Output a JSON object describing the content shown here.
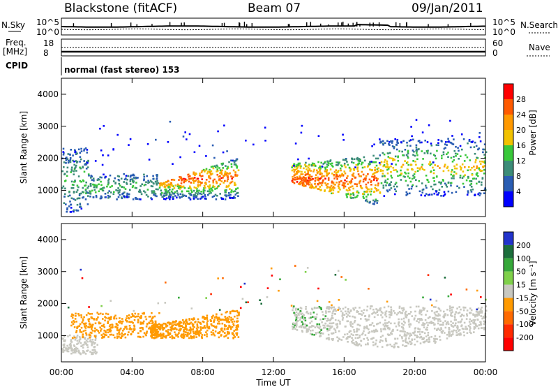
{
  "header": {
    "station": "Blackstone (fitACF)",
    "beam": "Beam 07",
    "date": "09/Jan/2011"
  },
  "panel_labels": {
    "nsky": "N.Sky",
    "nsearch": "N.Search",
    "freq_line1": "Freq.",
    "freq_line2": "[MHz]",
    "nave": "Nave",
    "cpid": "CPID",
    "cpid_value": "normal (fast stereo) 153"
  },
  "noise_panel": {
    "left_ticks": [
      "10^5",
      "10^0"
    ],
    "right_ticks": [
      "10^5",
      "10^0"
    ]
  },
  "freq_panel": {
    "left_ticks": [
      "18",
      "8"
    ],
    "right_ticks": [
      "60",
      "0"
    ]
  },
  "colors": {
    "power_scale": [
      "#0000ff",
      "#2a5db3",
      "#3c8c78",
      "#39c83a",
      "#f2c200",
      "#ff9900",
      "#ff5a00",
      "#ff0000"
    ],
    "velocity_scale": [
      "#2233cc",
      "#1c6e3c",
      "#36a83a",
      "#7fd04a",
      "#c8c8c0",
      "#ff9a00",
      "#ff6a00",
      "#ff2a00",
      "#ff0000"
    ]
  },
  "chart_data": [
    {
      "type": "heatmap",
      "name": "power",
      "ylabel": "Slant Range [km]",
      "ylim": [
        180,
        4500
      ],
      "y_ticks": [
        "1000",
        "2000",
        "3000",
        "4000"
      ],
      "x_ticks": [
        "00:00",
        "04:00",
        "08:00",
        "12:00",
        "16:00",
        "20:00",
        "00:00"
      ],
      "xlim_hours": [
        0,
        24
      ],
      "colorbar": {
        "label": "Power [dB]",
        "ticks": [
          "4",
          "8",
          "12",
          "16",
          "20",
          "24",
          "28"
        ],
        "range": [
          0,
          30
        ]
      },
      "echo_regions": [
        {
          "t": [
            0.0,
            1.5
          ],
          "range": [
            300,
            2300
          ],
          "power": "low-mid"
        },
        {
          "t": [
            1.5,
            5.5
          ],
          "range": [
            700,
            1500
          ],
          "power": "low-mid"
        },
        {
          "t": [
            5.5,
            10.0
          ],
          "range": [
            700,
            2000
          ],
          "power": "high"
        },
        {
          "t": [
            13.0,
            18.0
          ],
          "range": [
            400,
            2200
          ],
          "power": "high"
        },
        {
          "t": [
            18.0,
            24.0
          ],
          "range": [
            800,
            2600
          ],
          "power": "mid-high"
        }
      ]
    },
    {
      "type": "heatmap",
      "name": "velocity",
      "ylabel": "Slant Range [km]",
      "ylim": [
        180,
        4500
      ],
      "y_ticks": [
        "1000",
        "2000",
        "3000",
        "4000"
      ],
      "x_ticks": [
        "00:00",
        "04:00",
        "08:00",
        "12:00",
        "16:00",
        "20:00",
        "00:00"
      ],
      "xlim_hours": [
        0,
        24
      ],
      "xlabel": "Time UT",
      "colorbar": {
        "label": "Velocity [m s⁻¹]",
        "ticks": [
          "200",
          "100",
          "50",
          "15",
          "-15",
          "-50",
          "-100",
          "-200"
        ],
        "range": [
          -250,
          250
        ]
      },
      "echo_regions": [
        {
          "t": [
            0.0,
            2.0
          ],
          "range": [
            400,
            1000
          ],
          "velocity": "near zero (ground scatter)"
        },
        {
          "t": [
            0.5,
            5.5
          ],
          "range": [
            900,
            1700
          ],
          "velocity": "-50"
        },
        {
          "t": [
            5.0,
            10.0
          ],
          "range": [
            900,
            1800
          ],
          "velocity": "-50"
        },
        {
          "t": [
            13.0,
            24.0
          ],
          "range": [
            500,
            2100
          ],
          "velocity": "near zero (ground scatter)"
        }
      ]
    }
  ]
}
